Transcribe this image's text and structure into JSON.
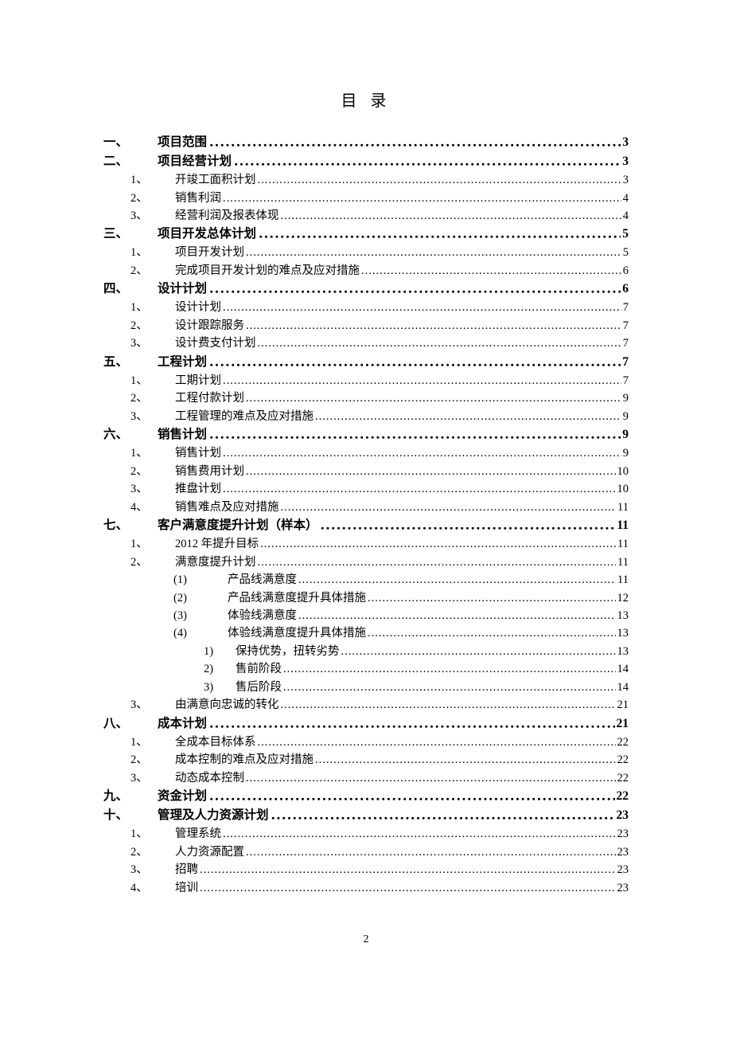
{
  "title": "目 录",
  "page_number": "2",
  "colors": {
    "text": "#000000",
    "background": "#ffffff"
  },
  "typography": {
    "body_fontsize": 15,
    "title_fontsize": 20,
    "font_family": "SimSun"
  },
  "entries": [
    {
      "level": 1,
      "num": "一、",
      "text": "项目范围",
      "page": "3",
      "leader": "bold"
    },
    {
      "level": 1,
      "num": "二、",
      "text": "项目经营计划",
      "page": "3",
      "leader": "bold"
    },
    {
      "level": 2,
      "num": "1、",
      "text": "开竣工面积计划",
      "page": "3",
      "leader": "thin"
    },
    {
      "level": 2,
      "num": "2、",
      "text": "销售利润",
      "page": "4",
      "leader": "thin"
    },
    {
      "level": 2,
      "num": "3、",
      "text": "经营利润及报表体现",
      "page": "4",
      "leader": "thin"
    },
    {
      "level": 1,
      "num": "三、",
      "text": "项目开发总体计划",
      "page": "5",
      "leader": "bold"
    },
    {
      "level": 2,
      "num": "1、",
      "text": "项目开发计划",
      "page": "5",
      "leader": "thin"
    },
    {
      "level": 2,
      "num": "2、",
      "text": "完成项目开发计划的难点及应对措施",
      "page": "6",
      "leader": "thin"
    },
    {
      "level": 1,
      "num": "四、",
      "text": "设计计划",
      "page": "6",
      "leader": "bold"
    },
    {
      "level": 2,
      "num": "1、",
      "text": "设计计划",
      "page": "7",
      "leader": "thin"
    },
    {
      "level": 2,
      "num": "2、",
      "text": "设计跟踪服务",
      "page": "7",
      "leader": "thin"
    },
    {
      "level": 2,
      "num": "3、",
      "text": "设计费支付计划",
      "page": "7",
      "leader": "thin"
    },
    {
      "level": 1,
      "num": "五、",
      "text": "工程计划",
      "page": "7",
      "leader": "bold"
    },
    {
      "level": 2,
      "num": "1、",
      "text": "工期计划",
      "page": "7",
      "leader": "thin"
    },
    {
      "level": 2,
      "num": "2、",
      "text": "工程付款计划",
      "page": "9",
      "leader": "thin"
    },
    {
      "level": 2,
      "num": "3、",
      "text": "工程管理的难点及应对措施",
      "page": "9",
      "leader": "thin"
    },
    {
      "level": 1,
      "num": "六、",
      "text": "销售计划",
      "page": "9",
      "leader": "bold"
    },
    {
      "level": 2,
      "num": "1、",
      "text": "销售计划",
      "page": "9",
      "leader": "thin"
    },
    {
      "level": 2,
      "num": "2、",
      "text": "销售费用计划",
      "page": "10",
      "leader": "thin"
    },
    {
      "level": 2,
      "num": "3、",
      "text": "推盘计划",
      "page": "10",
      "leader": "thin"
    },
    {
      "level": 2,
      "num": "4、",
      "text": "销售难点及应对措施",
      "page": "11",
      "leader": "thin"
    },
    {
      "level": 1,
      "num": "七、",
      "text": "客户满意度提升计划（样本）",
      "page": "11",
      "leader": "bold"
    },
    {
      "level": 2,
      "num": "1、",
      "text": "2012 年提升目标",
      "page": "11",
      "leader": "thin"
    },
    {
      "level": 2,
      "num": "2、",
      "text": "满意度提升计划",
      "page": "11",
      "leader": "thin"
    },
    {
      "level": 3,
      "num": "(1)",
      "text": "产品线满意度",
      "page": "11",
      "leader": "thin"
    },
    {
      "level": 3,
      "num": "(2)",
      "text": "产品线满意度提升具体措施",
      "page": "12",
      "leader": "thin"
    },
    {
      "level": 3,
      "num": "(3)",
      "text": "体验线满意度",
      "page": "13",
      "leader": "thin"
    },
    {
      "level": 3,
      "num": "(4)",
      "text": "体验线满意度提升具体措施",
      "page": "13",
      "leader": "thin"
    },
    {
      "level": 4,
      "num": "1)",
      "text": "保持优势，扭转劣势",
      "page": "13",
      "leader": "thin"
    },
    {
      "level": 4,
      "num": "2)",
      "text": "售前阶段",
      "page": "14",
      "leader": "thin"
    },
    {
      "level": 4,
      "num": "3)",
      "text": "售后阶段",
      "page": "14",
      "leader": "thin"
    },
    {
      "level": 2,
      "num": "3、",
      "text": "由满意向忠诚的转化",
      "page": "21",
      "leader": "thin"
    },
    {
      "level": 1,
      "num": "八、",
      "text": "成本计划",
      "page": "21",
      "leader": "bold"
    },
    {
      "level": 2,
      "num": "1、",
      "text": "全成本目标体系",
      "page": "22",
      "leader": "thin"
    },
    {
      "level": 2,
      "num": "2、",
      "text": "成本控制的难点及应对措施",
      "page": "22",
      "leader": "thin"
    },
    {
      "level": 2,
      "num": "3、",
      "text": "动态成本控制",
      "page": "22",
      "leader": "thin"
    },
    {
      "level": 1,
      "num": "九、",
      "text": "资金计划",
      "page": "22",
      "leader": "bold"
    },
    {
      "level": 1,
      "num": "十、",
      "text": "管理及人力资源计划",
      "page": "23",
      "leader": "bold"
    },
    {
      "level": 2,
      "num": "1、",
      "text": "管理系统",
      "page": "23",
      "leader": "thin"
    },
    {
      "level": 2,
      "num": "2、",
      "text": "人力资源配置",
      "page": "23",
      "leader": "thin"
    },
    {
      "level": 2,
      "num": "3、",
      "text": "招聘",
      "page": "23",
      "leader": "thin"
    },
    {
      "level": 2,
      "num": "4、",
      "text": "培训",
      "page": "23",
      "leader": "thin"
    }
  ]
}
